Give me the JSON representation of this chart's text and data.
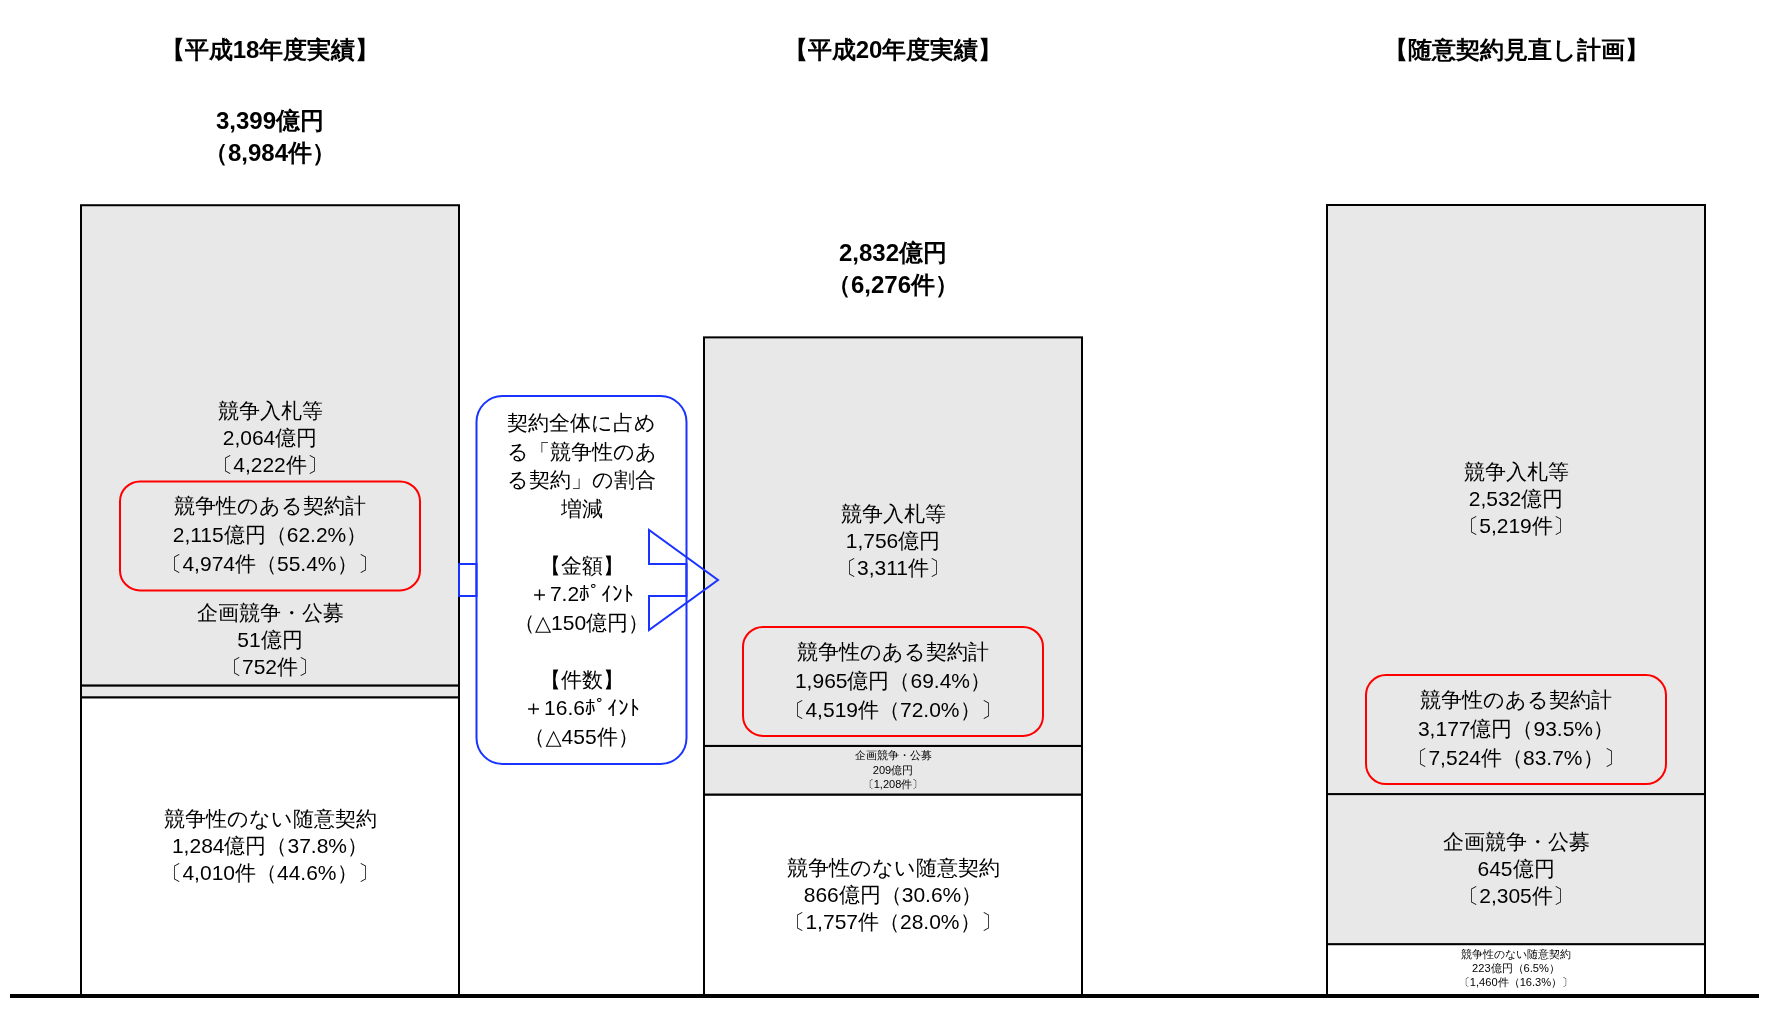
{
  "chart_data": {
    "type": "bar",
    "stacked": true,
    "categories": [
      "【平成18年度実績】",
      "【平成20年度実績】",
      "【随意契約見直し計画】"
    ],
    "series": [
      {
        "name": "競争性のない随意契約",
        "color": "#ffffff",
        "values": [
          1284,
          866,
          223
        ],
        "value_labels": [
          "1,284億円（37.8%）〔4,010件（44.6%）〕",
          "866億円（30.6%）〔1,757件（28.0%）〕",
          "223億円（6.5%）〔1,460件（16.3%）〕"
        ]
      },
      {
        "name": "企画競争・公募",
        "color": "#e8e8e8",
        "values": [
          51,
          209,
          645
        ],
        "value_labels": [
          "51億円〔752件〕",
          "209億円〔1,208件〕",
          "645億円〔2,305件〕"
        ]
      },
      {
        "name": "競争入札等",
        "color": "#e8e8e8",
        "values": [
          2064,
          1756,
          2532
        ],
        "value_labels": [
          "2,064億円〔4,222件〕",
          "1,756億円〔3,311件〕",
          "2,532億円〔5,219件〕"
        ]
      }
    ],
    "totals": [
      "3,399億円（8,984件）",
      "2,832億円（6,276件）",
      null
    ],
    "annotations": [
      "競争性のある契約計2,115億円（62.2%）〔4,974件（55.4%）〕",
      "競争性のある契約計1,965億円（69.4%）〔4,519件（72.0%）〕",
      "競争性のある契約計3,177億円（93.5%）〔7,524件（83.7%）〕",
      "契約全体に占める「競争性のある契約」の割合増減",
      "【金額】＋7.2ﾎﾟｲﾝﾄ（△150億円）",
      "【件数】＋16.6ﾎﾟｲﾝﾄ（△455件）"
    ]
  }
}
